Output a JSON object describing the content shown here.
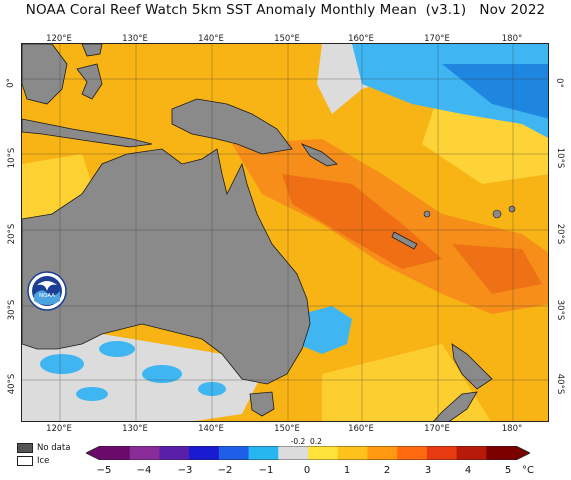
{
  "title": "NOAA Coral Reef Watch 5km SST Anomaly Monthly Mean  (v3.1)   Nov 2022",
  "logo_text": "NOAA",
  "lon_ticks": [
    "120°E",
    "130°E",
    "140°E",
    "150°E",
    "160°E",
    "170°E",
    "180°"
  ],
  "lat_ticks": [
    "0°",
    "10°S",
    "20°S",
    "30°S",
    "40°S"
  ],
  "legend": {
    "no_data_label": "No data",
    "ice_label": "Ice",
    "no_data_color": "#808080",
    "ice_color": "#ffffff"
  },
  "colorbar": {
    "ticks": [
      "−5",
      "−4",
      "−3",
      "−2",
      "−1",
      "0",
      "1",
      "2",
      "3",
      "4",
      "5"
    ],
    "unit": "°C",
    "small_labels": [
      "-0.2",
      "0.2"
    ],
    "colors": [
      "#6a0a6a",
      "#8a2b9a",
      "#5a1fa8",
      "#1a1ad0",
      "#1f5fe8",
      "#27b6f0",
      "#dcdcdc",
      "#ffe23a",
      "#ffc21a",
      "#ff9a10",
      "#ff6a10",
      "#e83a10",
      "#b81a0a",
      "#7a0000"
    ]
  },
  "colors": {
    "land": "#8a8a8a",
    "ocean_warm": "#f8b414",
    "ocean_hot": "#f58a1a",
    "ocean_cold": "#3fb6f2",
    "ocean_neutral": "#d8d8d8"
  }
}
